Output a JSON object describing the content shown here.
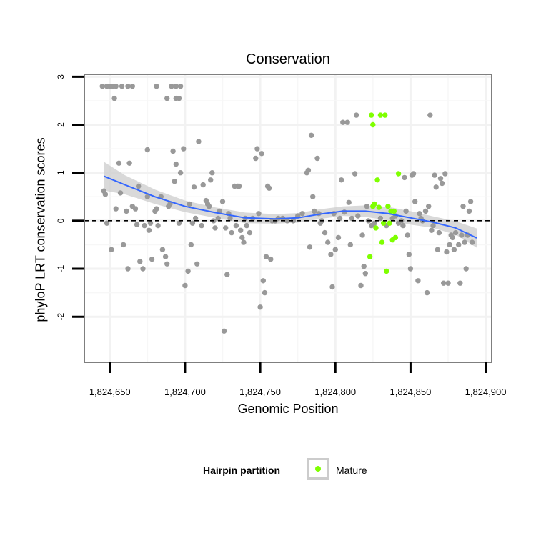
{
  "chart_data": {
    "type": "scatter",
    "title": "Conservation",
    "xlabel": "Genomic Position",
    "ylabel": "phyloP LRT conservation scores",
    "xlim": [
      1824633,
      1824904
    ],
    "ylim": [
      -2.95,
      3.05
    ],
    "x_ticks": [
      1824650,
      1824700,
      1824750,
      1824800,
      1824850,
      1824900
    ],
    "x_tick_labels": [
      "1,824,650",
      "1,824,700",
      "1,824,750",
      "1,824,800",
      "1,824,850",
      "1,824,900"
    ],
    "y_ticks": [
      -2,
      -1,
      0,
      1,
      2,
      3
    ],
    "y_tick_labels": [
      "-2",
      "-1",
      "0",
      "1",
      "2",
      "3"
    ],
    "grid": true,
    "reference_line": {
      "y": 0,
      "style": "dashed"
    },
    "legend": {
      "title": "Hairpin partition",
      "position": "bottom",
      "entries": [
        {
          "label": "Mature",
          "color": "#7fff00"
        }
      ]
    },
    "colors": {
      "other": "#999999",
      "mature": "#7fff00",
      "smooth": "#3366ff",
      "ribbon": "#cccccc"
    },
    "series": [
      {
        "color": "#999999",
        "points": [
          [
            1824645,
            2.8
          ],
          [
            1824648,
            2.8
          ],
          [
            1824650,
            2.8
          ],
          [
            1824652,
            2.8
          ],
          [
            1824654,
            2.8
          ],
          [
            1824658,
            2.8
          ],
          [
            1824662,
            2.8
          ],
          [
            1824665,
            2.8
          ],
          [
            1824681,
            2.8
          ],
          [
            1824691,
            2.8
          ],
          [
            1824694,
            2.8
          ],
          [
            1824697,
            2.8
          ],
          [
            1824653,
            2.55
          ],
          [
            1824688,
            2.55
          ],
          [
            1824694,
            2.55
          ],
          [
            1824696,
            2.55
          ],
          [
            1824646,
            0.62
          ],
          [
            1824647,
            0.55
          ],
          [
            1824648,
            -0.05
          ],
          [
            1824651,
            -0.6
          ],
          [
            1824654,
            0.25
          ],
          [
            1824656,
            1.2
          ],
          [
            1824657,
            0.58
          ],
          [
            1824659,
            -0.5
          ],
          [
            1824661,
            0.2
          ],
          [
            1824663,
            1.2
          ],
          [
            1824662,
            -1.0
          ],
          [
            1824665,
            0.3
          ],
          [
            1824667,
            0.25
          ],
          [
            1824668,
            -0.08
          ],
          [
            1824669,
            0.72
          ],
          [
            1824670,
            -0.85
          ],
          [
            1824672,
            -1.0
          ],
          [
            1824673,
            -0.1
          ],
          [
            1824675,
            0.5
          ],
          [
            1824675,
            1.48
          ],
          [
            1824676,
            -0.2
          ],
          [
            1824677,
            -0.05
          ],
          [
            1824678,
            -0.8
          ],
          [
            1824680,
            0.2
          ],
          [
            1824681,
            0.25
          ],
          [
            1824682,
            -0.1
          ],
          [
            1824684,
            0.5
          ],
          [
            1824685,
            -0.6
          ],
          [
            1824687,
            -0.75
          ],
          [
            1824688,
            -0.9
          ],
          [
            1824689,
            0.3
          ],
          [
            1824690,
            0.35
          ],
          [
            1824692,
            1.45
          ],
          [
            1824693,
            0.82
          ],
          [
            1824694,
            1.18
          ],
          [
            1824696,
            -0.05
          ],
          [
            1824697,
            1.0
          ],
          [
            1824699,
            1.5
          ],
          [
            1824700,
            -1.35
          ],
          [
            1824702,
            -1.05
          ],
          [
            1824703,
            0.35
          ],
          [
            1824704,
            -0.5
          ],
          [
            1824705,
            -0.05
          ],
          [
            1824706,
            0.7
          ],
          [
            1824707,
            0.05
          ],
          [
            1824708,
            -0.9
          ],
          [
            1824709,
            1.65
          ],
          [
            1824711,
            -0.1
          ],
          [
            1824712,
            0.75
          ],
          [
            1824714,
            0.42
          ],
          [
            1824715,
            0.35
          ],
          [
            1824716,
            0.3
          ],
          [
            1824717,
            0.85
          ],
          [
            1824718,
            1.0
          ],
          [
            1824719,
            0.0
          ],
          [
            1824720,
            -0.15
          ],
          [
            1824722,
            0.05
          ],
          [
            1824723,
            0.2
          ],
          [
            1824725,
            0.4
          ],
          [
            1824726,
            -2.3
          ],
          [
            1824727,
            -0.15
          ],
          [
            1824728,
            -1.12
          ],
          [
            1824729,
            0.15
          ],
          [
            1824730,
            0.05
          ],
          [
            1824731,
            -0.25
          ],
          [
            1824733,
            0.72
          ],
          [
            1824734,
            -0.1
          ],
          [
            1824735,
            0.72
          ],
          [
            1824736,
            0.72
          ],
          [
            1824737,
            -0.2
          ],
          [
            1824738,
            -0.35
          ],
          [
            1824739,
            -0.45
          ],
          [
            1824740,
            0.05
          ],
          [
            1824741,
            -0.1
          ],
          [
            1824743,
            -0.25
          ],
          [
            1824745,
            0.05
          ],
          [
            1824747,
            1.3
          ],
          [
            1824748,
            1.5
          ],
          [
            1824749,
            0.15
          ],
          [
            1824750,
            -1.8
          ],
          [
            1824751,
            1.4
          ],
          [
            1824752,
            -1.25
          ],
          [
            1824753,
            -1.5
          ],
          [
            1824754,
            -0.75
          ],
          [
            1824755,
            0.72
          ],
          [
            1824756,
            0.68
          ],
          [
            1824757,
            -0.8
          ],
          [
            1824758,
            0.0
          ],
          [
            1824760,
            0.0
          ],
          [
            1824762,
            0.05
          ],
          [
            1824765,
            0.05
          ],
          [
            1824768,
            0.0
          ],
          [
            1824772,
            0.0
          ],
          [
            1824775,
            0.1
          ],
          [
            1824778,
            0.15
          ],
          [
            1824781,
            1.0
          ],
          [
            1824782,
            1.05
          ],
          [
            1824783,
            -0.55
          ],
          [
            1824784,
            1.78
          ],
          [
            1824785,
            0.5
          ],
          [
            1824786,
            0.2
          ],
          [
            1824788,
            1.3
          ],
          [
            1824789,
            0.15
          ],
          [
            1824790,
            -0.05
          ],
          [
            1824791,
            0.0
          ],
          [
            1824793,
            -0.25
          ],
          [
            1824795,
            -0.45
          ],
          [
            1824797,
            -0.7
          ],
          [
            1824798,
            -1.38
          ],
          [
            1824799,
            0.15
          ],
          [
            1824800,
            -0.6
          ],
          [
            1824802,
            -0.35
          ],
          [
            1824803,
            0.05
          ],
          [
            1824804,
            0.85
          ],
          [
            1824805,
            2.05
          ],
          [
            1824806,
            0.18
          ],
          [
            1824808,
            2.05
          ],
          [
            1824809,
            0.38
          ],
          [
            1824810,
            -0.5
          ],
          [
            1824811,
            0.05
          ],
          [
            1824813,
            0.98
          ],
          [
            1824814,
            2.2
          ],
          [
            1824815,
            0.1
          ],
          [
            1824817,
            -1.35
          ],
          [
            1824818,
            -0.3
          ],
          [
            1824819,
            -0.95
          ],
          [
            1824820,
            -1.1
          ],
          [
            1824821,
            0.3
          ],
          [
            1824822,
            0.0
          ],
          [
            1824824,
            -0.1
          ],
          [
            1824826,
            -0.05
          ],
          [
            1824830,
            0.05
          ],
          [
            1824834,
            -0.1
          ],
          [
            1824838,
            0.05
          ],
          [
            1824840,
            0.1
          ],
          [
            1824842,
            -0.05
          ],
          [
            1824844,
            0.0
          ],
          [
            1824845,
            -0.1
          ],
          [
            1824846,
            0.9
          ],
          [
            1824847,
            0.2
          ],
          [
            1824848,
            -0.3
          ],
          [
            1824849,
            -0.7
          ],
          [
            1824850,
            -1.0
          ],
          [
            1824851,
            0.95
          ],
          [
            1824852,
            0.98
          ],
          [
            1824853,
            0.4
          ],
          [
            1824855,
            -1.25
          ],
          [
            1824856,
            0.15
          ],
          [
            1824857,
            0.05
          ],
          [
            1824858,
            0.0
          ],
          [
            1824860,
            0.2
          ],
          [
            1824861,
            -1.5
          ],
          [
            1824862,
            0.3
          ],
          [
            1824863,
            2.2
          ],
          [
            1824864,
            -0.2
          ],
          [
            1824865,
            -0.1
          ],
          [
            1824866,
            0.95
          ],
          [
            1824867,
            0.7
          ],
          [
            1824868,
            -0.6
          ],
          [
            1824869,
            -0.25
          ],
          [
            1824870,
            0.88
          ],
          [
            1824871,
            0.78
          ],
          [
            1824872,
            -1.3
          ],
          [
            1824873,
            0.98
          ],
          [
            1824874,
            -0.65
          ],
          [
            1824875,
            -1.3
          ],
          [
            1824876,
            -0.5
          ],
          [
            1824877,
            -0.3
          ],
          [
            1824878,
            -0.35
          ],
          [
            1824879,
            -0.6
          ],
          [
            1824880,
            -0.25
          ],
          [
            1824882,
            -0.5
          ],
          [
            1824883,
            -1.3
          ],
          [
            1824884,
            -0.3
          ],
          [
            1824885,
            0.3
          ],
          [
            1824886,
            -0.45
          ],
          [
            1824887,
            -1.0
          ],
          [
            1824888,
            -0.3
          ],
          [
            1824889,
            0.2
          ],
          [
            1824890,
            0.4
          ],
          [
            1824891,
            -0.45
          ]
        ]
      },
      {
        "name": "Mature",
        "color": "#7fff00",
        "points": [
          [
            1824824,
            2.2
          ],
          [
            1824830,
            2.2
          ],
          [
            1824833,
            2.2
          ],
          [
            1824825,
            2.0
          ],
          [
            1824826,
            0.35
          ],
          [
            1824825,
            0.3
          ],
          [
            1824828,
            0.85
          ],
          [
            1824842,
            0.98
          ],
          [
            1824829,
            0.28
          ],
          [
            1824835,
            0.3
          ],
          [
            1824837,
            0.2
          ],
          [
            1824840,
            -0.35
          ],
          [
            1824838,
            -0.4
          ],
          [
            1824831,
            -0.45
          ],
          [
            1824823,
            -0.75
          ],
          [
            1824834,
            -1.05
          ],
          [
            1824827,
            -0.15
          ],
          [
            1824832,
            -0.05
          ],
          [
            1824836,
            -0.05
          ],
          [
            1824839,
            0.2
          ]
        ]
      }
    ],
    "smooth": {
      "x": [
        1824646,
        1824660,
        1824680,
        1824700,
        1824720,
        1824740,
        1824760,
        1824775,
        1824790,
        1824805,
        1824820,
        1824835,
        1824850,
        1824865,
        1824880,
        1824894
      ],
      "y": [
        0.93,
        0.75,
        0.5,
        0.3,
        0.17,
        0.06,
        0.04,
        0.06,
        0.14,
        0.2,
        0.2,
        0.15,
        0.06,
        -0.03,
        -0.15,
        -0.36
      ],
      "lower": [
        0.63,
        0.55,
        0.35,
        0.18,
        0.06,
        -0.05,
        -0.06,
        -0.04,
        0.04,
        0.1,
        0.08,
        0.01,
        -0.08,
        -0.15,
        -0.29,
        -0.56
      ],
      "upper": [
        1.23,
        0.95,
        0.65,
        0.42,
        0.28,
        0.17,
        0.14,
        0.16,
        0.24,
        0.3,
        0.32,
        0.29,
        0.2,
        0.09,
        -0.01,
        -0.16
      ]
    }
  }
}
